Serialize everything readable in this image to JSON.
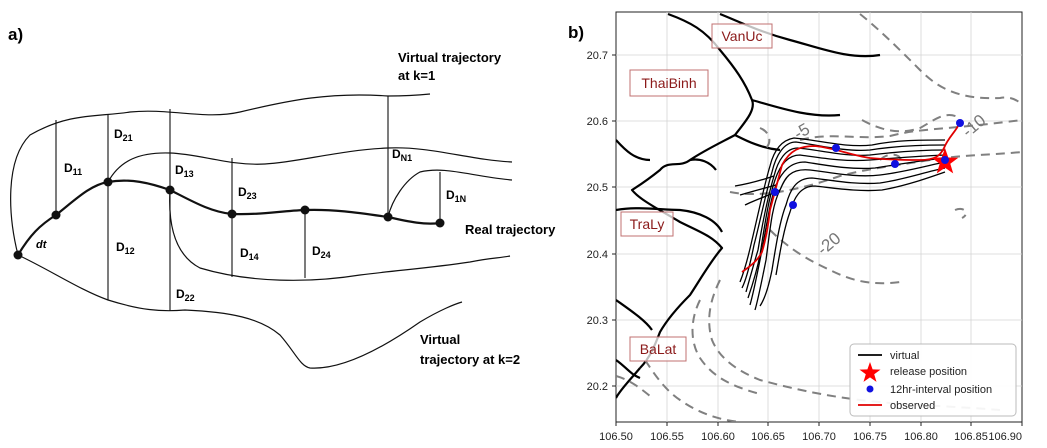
{
  "left_panel": {
    "panel_label": "a)",
    "labels": {
      "virtual_k1_line1": "Virtual trajectory",
      "virtual_k1_line2": "at k=1",
      "real": "Real trajectory",
      "virtual_k2_line1": "Virtual",
      "virtual_k2_line2": "trajectory at k=2",
      "dt": "dt"
    },
    "distances": [
      {
        "base": "D",
        "sub": "11"
      },
      {
        "base": "D",
        "sub": "21"
      },
      {
        "base": "D",
        "sub": "13"
      },
      {
        "base": "D",
        "sub": "23"
      },
      {
        "base": "D",
        "sub": "N1"
      },
      {
        "base": "D",
        "sub": "1N"
      },
      {
        "base": "D",
        "sub": "12"
      },
      {
        "base": "D",
        "sub": "14"
      },
      {
        "base": "D",
        "sub": "24"
      },
      {
        "base": "D",
        "sub": "22"
      }
    ]
  },
  "right_panel": {
    "panel_label": "b)",
    "places": [
      "VanUc",
      "ThaiBinh",
      "TraLy",
      "BaLat"
    ],
    "contour_labels": [
      "-5",
      "-10",
      "-20"
    ],
    "legend": [
      {
        "label": "virtual",
        "symbol": "black-line"
      },
      {
        "label": "release position",
        "symbol": "red-star"
      },
      {
        "label": "12hr-interval position",
        "symbol": "blue-dot"
      },
      {
        "label": "observed",
        "symbol": "red-line"
      }
    ],
    "x_ticks": [
      "106.50",
      "106.55",
      "106.60",
      "106.65",
      "106.70",
      "106.75",
      "106.80",
      "106.85",
      "106.90"
    ],
    "y_ticks": [
      "20.7",
      "20.6",
      "20.5",
      "20.4",
      "20.3",
      "20.2"
    ],
    "colors": {
      "virtual": "#000000",
      "observed": "#e00000",
      "release": "#ff0000",
      "interval": "#1010e0",
      "contour": "#808080",
      "place_text": "#8b1a1a"
    }
  }
}
